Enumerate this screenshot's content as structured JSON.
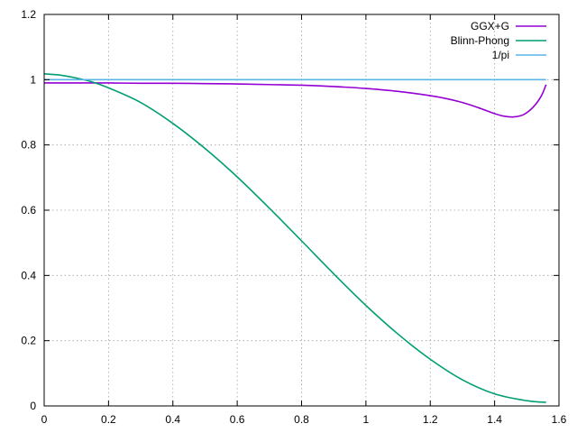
{
  "chart_data": {
    "type": "line",
    "title": "",
    "xlabel": "",
    "ylabel": "",
    "xlim": [
      0,
      1.6
    ],
    "ylim": [
      0,
      1.2
    ],
    "xticks": [
      "0",
      "0.2",
      "0.4",
      "0.6",
      "0.8",
      "1",
      "1.2",
      "1.4",
      "1.6"
    ],
    "yticks": [
      "0",
      "0.2",
      "0.4",
      "0.6",
      "0.8",
      "1",
      "1.2"
    ],
    "grid": true,
    "legend_position": "top-right",
    "series": [
      {
        "name": "GGX+G",
        "color": "#9400d3",
        "x": [
          0.0,
          0.1,
          0.2,
          0.3,
          0.4,
          0.5,
          0.6,
          0.7,
          0.8,
          0.9,
          1.0,
          1.1,
          1.2,
          1.25,
          1.3,
          1.35,
          1.4,
          1.43,
          1.46,
          1.49,
          1.52,
          1.545,
          1.56
        ],
        "y": [
          0.99,
          0.99,
          0.99,
          0.989,
          0.989,
          0.988,
          0.987,
          0.985,
          0.983,
          0.979,
          0.973,
          0.964,
          0.951,
          0.942,
          0.93,
          0.914,
          0.896,
          0.888,
          0.886,
          0.893,
          0.916,
          0.95,
          0.985
        ]
      },
      {
        "name": "Blinn-Phong",
        "color": "#009e73",
        "x": [
          0.0,
          0.05,
          0.1,
          0.15,
          0.2,
          0.3,
          0.4,
          0.5,
          0.6,
          0.7,
          0.8,
          0.9,
          1.0,
          1.1,
          1.2,
          1.3,
          1.4,
          1.5,
          1.56
        ],
        "y": [
          1.018,
          1.014,
          1.005,
          0.993,
          0.975,
          0.93,
          0.866,
          0.789,
          0.702,
          0.606,
          0.506,
          0.405,
          0.308,
          0.22,
          0.143,
          0.08,
          0.037,
          0.016,
          0.011
        ]
      },
      {
        "name": "1/pi",
        "color": "#56b4e9",
        "x": [
          0.0,
          1.56
        ],
        "y": [
          1.0,
          1.0
        ]
      }
    ]
  }
}
